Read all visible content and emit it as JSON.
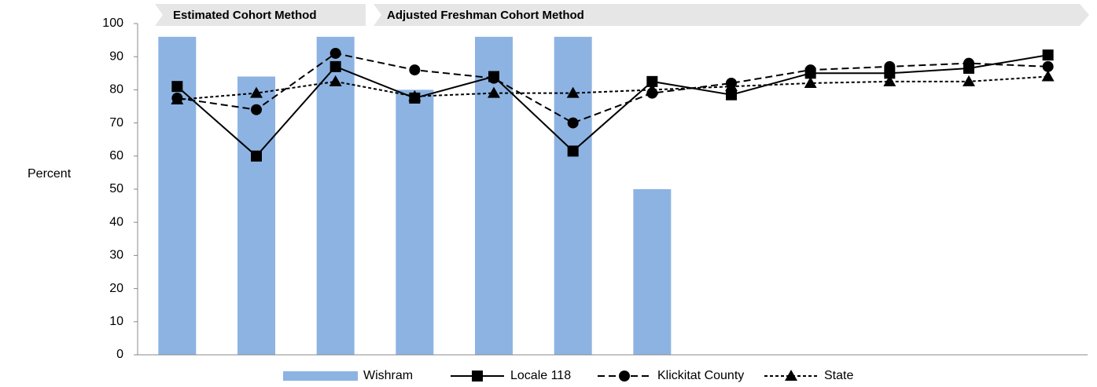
{
  "chart_data": {
    "type": "bar_line",
    "y_label": "Percent",
    "annotations": [
      "Estimated Cohort Method",
      "Adjusted Freshman Cohort Method"
    ],
    "categories": [
      null,
      null,
      null,
      null,
      null,
      null,
      null,
      null,
      null,
      null,
      null,
      null
    ],
    "ylim": [
      0,
      100
    ],
    "yticks": [
      0,
      10,
      20,
      30,
      40,
      50,
      60,
      70,
      80,
      90,
      100
    ],
    "series": [
      {
        "name": "Wishram",
        "kind": "bar",
        "color": "#8db3e2",
        "values": [
          96,
          84,
          96,
          80,
          96,
          96,
          50,
          null,
          null,
          null,
          null,
          null
        ]
      },
      {
        "name": "Locale 118",
        "kind": "line",
        "color": "#000000",
        "dash": "solid",
        "marker": "square",
        "values": [
          81,
          60,
          87,
          77.5,
          84,
          61.5,
          82.5,
          78.5,
          85,
          85,
          86.5,
          90.5
        ]
      },
      {
        "name": "Klickitat County",
        "kind": "line",
        "color": "#000000",
        "dash": "dashed",
        "marker": "circle",
        "values": [
          77.5,
          74,
          91,
          86,
          83.5,
          70,
          79,
          82,
          86,
          87,
          88,
          87
        ]
      },
      {
        "name": "State",
        "kind": "line",
        "color": "#000000",
        "dash": "dotted",
        "marker": "triangle",
        "values": [
          77,
          79,
          82.5,
          78,
          79,
          79,
          80,
          81,
          82,
          82.5,
          82.5,
          84
        ]
      }
    ]
  }
}
